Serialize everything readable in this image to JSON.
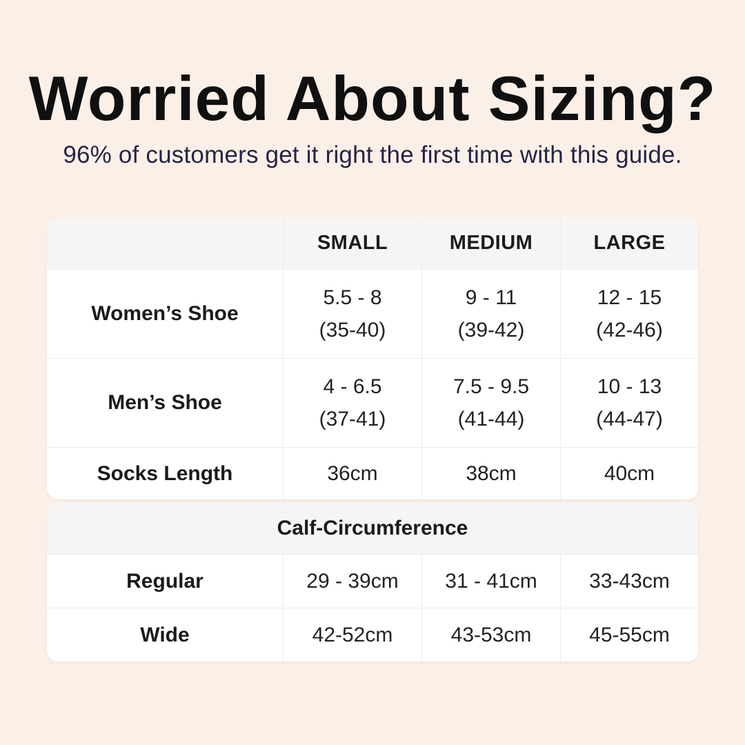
{
  "page": {
    "background_color": "#fbf0e8",
    "title_color": "#101010",
    "subtitle_color": "#272345",
    "card_color": "#ffffff",
    "band_color": "#f6f5f3",
    "divider_color": "#ececec"
  },
  "header": {
    "title": "Worried About Sizing?",
    "subtitle": "96% of customers get it right the first time with this guide."
  },
  "size_table": {
    "columns": [
      "SMALL",
      "MEDIUM",
      "LARGE"
    ],
    "rows": [
      {
        "label": "Women’s Shoe",
        "values": [
          [
            "5.5 - 8",
            "(35-40)"
          ],
          [
            "9 - 11",
            "(39-42)"
          ],
          [
            "12 - 15",
            "(42-46)"
          ]
        ]
      },
      {
        "label": "Men’s Shoe",
        "values": [
          [
            "4 - 6.5",
            "(37-41)"
          ],
          [
            "7.5 - 9.5",
            "(41-44)"
          ],
          [
            "10 - 13",
            "(44-47)"
          ]
        ]
      },
      {
        "label": "Socks Length",
        "values": [
          [
            "36cm"
          ],
          [
            "38cm"
          ],
          [
            "40cm"
          ]
        ]
      }
    ]
  },
  "calf_table": {
    "header": "Calf-Circumference",
    "rows": [
      {
        "label": "Regular",
        "values": [
          "29 - 39cm",
          "31 - 41cm",
          "33-43cm"
        ]
      },
      {
        "label": "Wide",
        "values": [
          "42-52cm",
          "43-53cm",
          "45-55cm"
        ]
      }
    ]
  },
  "chart_data": {
    "type": "table",
    "title": "Worried About Sizing?",
    "subtitle": "96% of customers get it right the first time with this guide.",
    "columns": [
      "",
      "SMALL",
      "MEDIUM",
      "LARGE"
    ],
    "rows": [
      [
        "Women’s Shoe",
        "5.5 - 8 (35-40)",
        "9 - 11 (39-42)",
        "12 - 15 (42-46)"
      ],
      [
        "Men’s Shoe",
        "4 - 6.5 (37-41)",
        "7.5 - 9.5 (41-44)",
        "10 - 13 (44-47)"
      ],
      [
        "Socks Length",
        "36cm",
        "38cm",
        "40cm"
      ],
      [
        "Calf-Circumference (section header)",
        "",
        "",
        ""
      ],
      [
        "Regular",
        "29 - 39cm",
        "31 - 41cm",
        "33-43cm"
      ],
      [
        "Wide",
        "42-52cm",
        "43-53cm",
        "45-55cm"
      ]
    ]
  }
}
